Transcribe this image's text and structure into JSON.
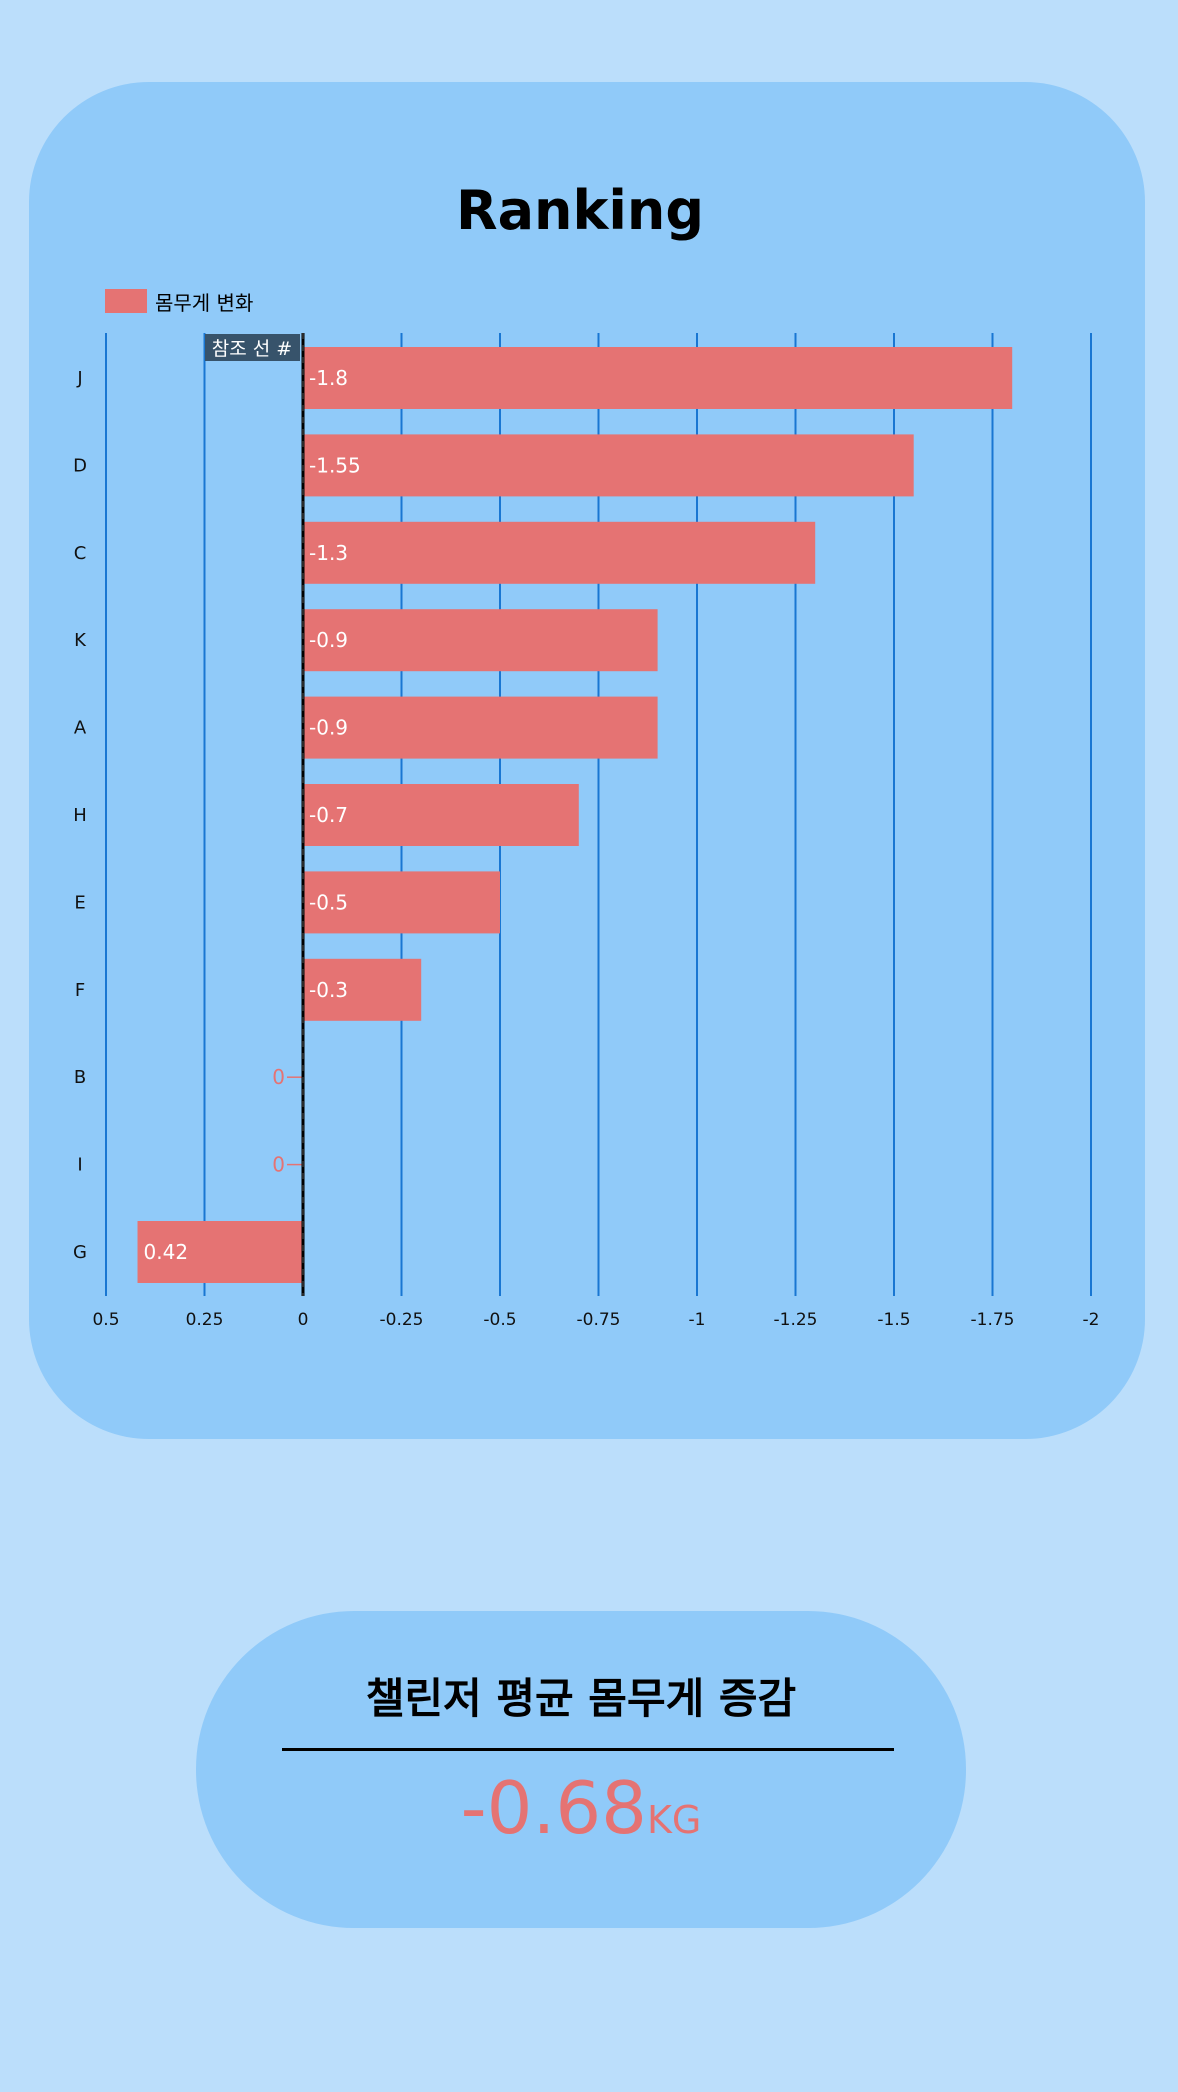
{
  "chart_data": {
    "type": "bar",
    "orientation": "horizontal",
    "title": "Ranking",
    "categories": [
      "J",
      "D",
      "C",
      "K",
      "A",
      "H",
      "E",
      "F",
      "B",
      "I",
      "G"
    ],
    "series": [
      {
        "name": "몸무게 변화",
        "color": "#e57373",
        "values": [
          -1.8,
          -1.55,
          -1.3,
          -0.9,
          -0.9,
          -0.7,
          -0.5,
          -0.3,
          0,
          0,
          0.42
        ],
        "labels": [
          "-1.8",
          "-1.55",
          "-1.3",
          "-0.9",
          "-0.9",
          "-0.7",
          "-0.5",
          "-0.3",
          "0",
          "0",
          "0.42"
        ]
      }
    ],
    "x_axis": {
      "reversed": true,
      "range": [
        0.5,
        -2
      ],
      "ticks": [
        0.5,
        0.25,
        0,
        -0.25,
        -0.5,
        -0.75,
        -1,
        -1.25,
        -1.5,
        -1.75,
        -2
      ],
      "tick_labels": [
        "0.5",
        "0.25",
        "0",
        "-0.25",
        "-0.5",
        "-0.75",
        "-1",
        "-1.25",
        "-1.5",
        "-1.75",
        "-2"
      ]
    },
    "grid": true,
    "grid_color": "#1976d2",
    "legend_position": "top-left",
    "reference_line": {
      "value": 0,
      "label": "참조 선 #",
      "color": "#000000"
    }
  },
  "summary": {
    "title": "챌린저 평균 몸무게 증감",
    "value": "-0.68",
    "unit": "KG"
  },
  "colors": {
    "page_background": "#bbdefb",
    "card_background": "#90caf9",
    "accent": "#e57373"
  }
}
